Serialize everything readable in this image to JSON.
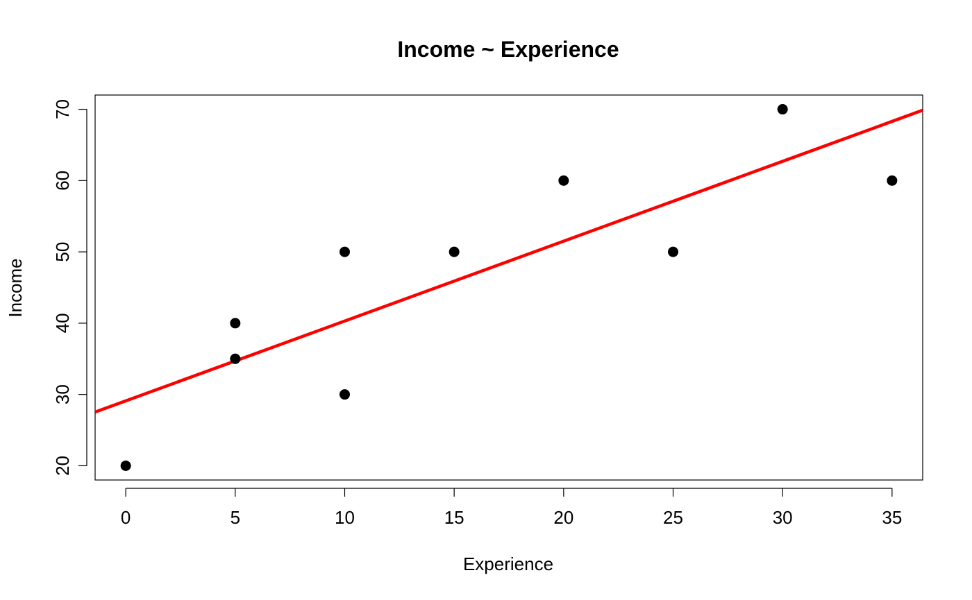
{
  "chart_data": {
    "type": "scatter",
    "title": "Income ~ Experience",
    "xlabel": "Experience",
    "ylabel": "Income",
    "xlim": [
      -1.4,
      36.4
    ],
    "ylim": [
      18,
      72
    ],
    "x_ticks": [
      0,
      5,
      10,
      15,
      20,
      25,
      30,
      35
    ],
    "y_ticks": [
      20,
      30,
      40,
      50,
      60,
      70
    ],
    "grid": false,
    "legend": "none",
    "points": [
      {
        "x": 0,
        "y": 20
      },
      {
        "x": 5,
        "y": 40
      },
      {
        "x": 5,
        "y": 35
      },
      {
        "x": 10,
        "y": 50
      },
      {
        "x": 10,
        "y": 30
      },
      {
        "x": 15,
        "y": 50
      },
      {
        "x": 20,
        "y": 60
      },
      {
        "x": 25,
        "y": 50
      },
      {
        "x": 30,
        "y": 70
      },
      {
        "x": 35,
        "y": 60
      }
    ],
    "regression_line": {
      "intercept": 29.1,
      "slope": 1.12,
      "color": "#ff0000"
    },
    "point_color": "#000000"
  }
}
